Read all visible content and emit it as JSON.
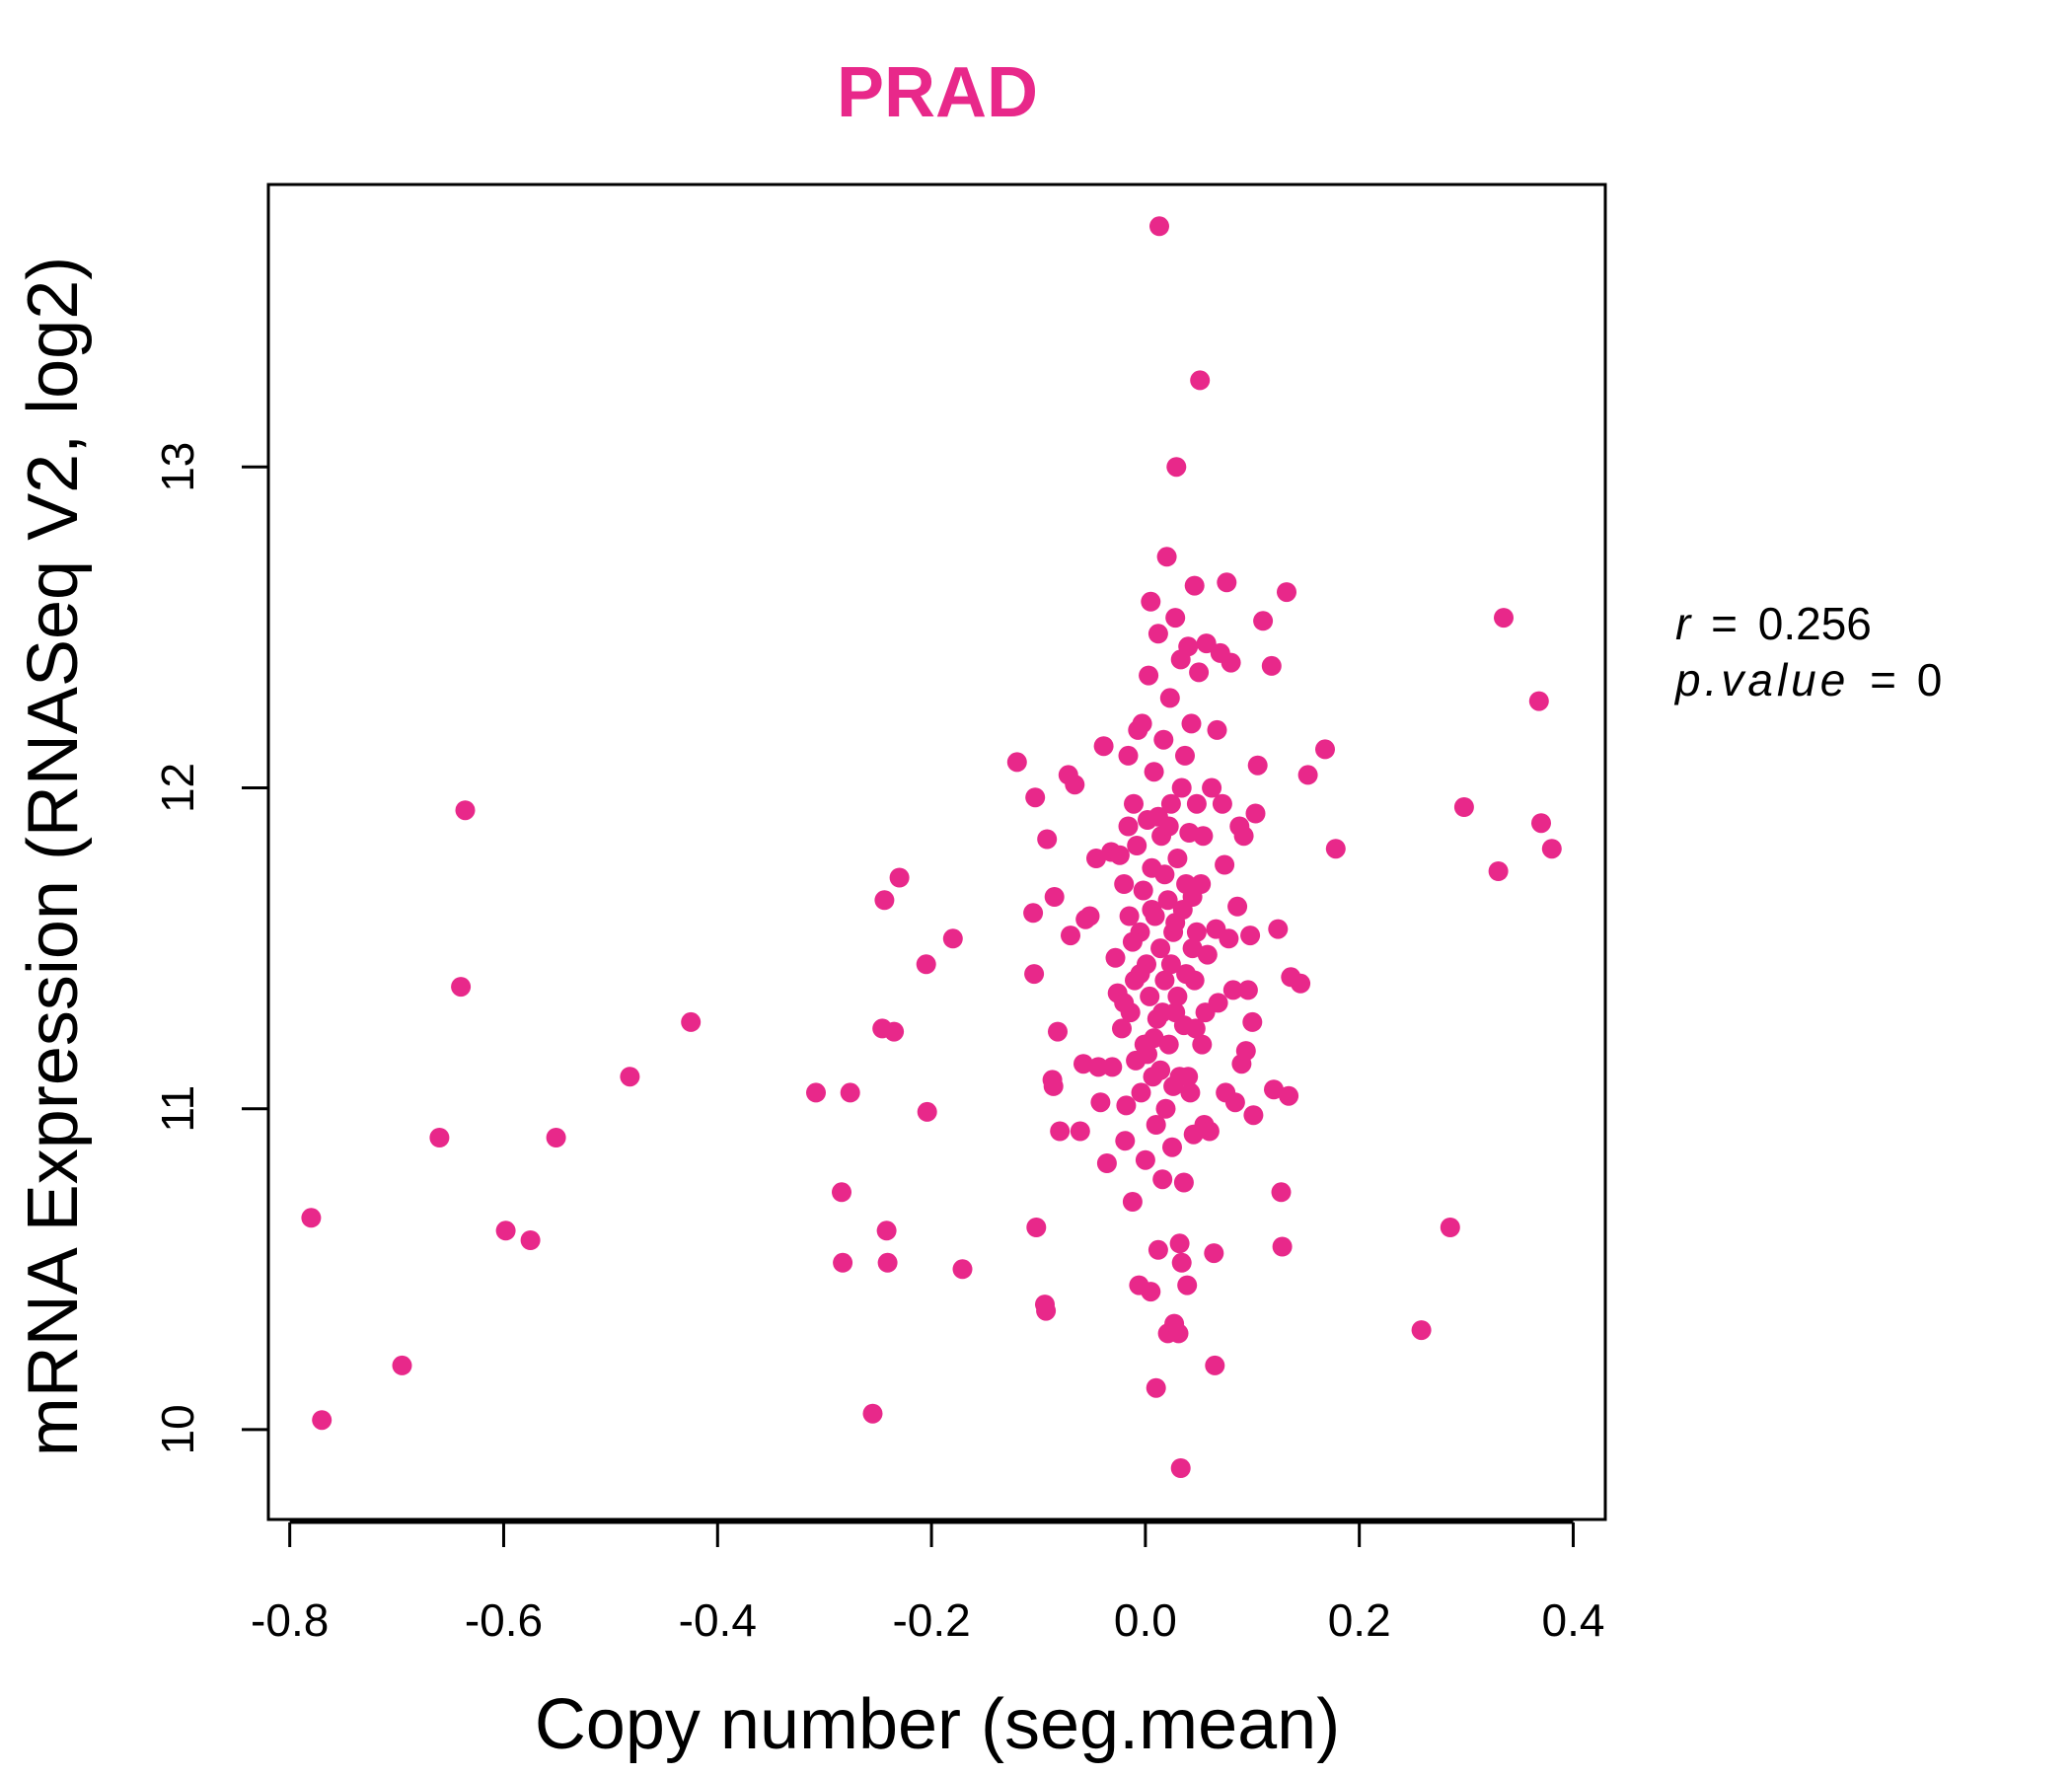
{
  "chart_data": {
    "type": "scatter",
    "title": "PRAD",
    "xlabel": "Copy number (seg.mean)",
    "ylabel": "mRNA Expression (RNASeq V2, log2)",
    "xlim": [
      -0.82,
      0.43
    ],
    "ylim": [
      9.72,
      13.88
    ],
    "x_ticks": [
      -0.8,
      -0.6,
      -0.4,
      -0.2,
      0.0,
      0.2,
      0.4
    ],
    "x_tick_labels": [
      "-0.8",
      "-0.6",
      "-0.4",
      "-0.2",
      "0.0",
      "0.2",
      "0.4"
    ],
    "y_ticks": [
      10,
      11,
      12,
      13
    ],
    "y_tick_labels": [
      "10",
      "11",
      "12",
      "13"
    ],
    "grid": false,
    "point_color": "#e8288a",
    "stats": {
      "r_label": "r",
      "r_value": "0.256",
      "p_label": "p.value",
      "p_value": "0"
    },
    "points": [
      [
        -0.78,
        10.66
      ],
      [
        -0.77,
        10.03
      ],
      [
        -0.695,
        10.2
      ],
      [
        -0.66,
        10.91
      ],
      [
        -0.64,
        11.38
      ],
      [
        -0.636,
        11.93
      ],
      [
        -0.598,
        10.62
      ],
      [
        -0.575,
        10.59
      ],
      [
        -0.551,
        10.91
      ],
      [
        -0.482,
        11.1
      ],
      [
        -0.425,
        11.27
      ],
      [
        -0.308,
        11.05
      ],
      [
        -0.284,
        10.74
      ],
      [
        -0.283,
        10.52
      ],
      [
        -0.276,
        11.05
      ],
      [
        -0.255,
        10.05
      ],
      [
        -0.246,
        11.25
      ],
      [
        -0.244,
        11.65
      ],
      [
        -0.242,
        10.62
      ],
      [
        -0.241,
        10.52
      ],
      [
        -0.235,
        11.24
      ],
      [
        -0.23,
        11.72
      ],
      [
        -0.205,
        11.45
      ],
      [
        -0.204,
        10.99
      ],
      [
        -0.18,
        11.53
      ],
      [
        -0.171,
        10.5
      ],
      [
        -0.12,
        12.08
      ],
      [
        -0.105,
        11.61
      ],
      [
        -0.104,
        11.42
      ],
      [
        -0.103,
        11.97
      ],
      [
        -0.102,
        10.63
      ],
      [
        -0.094,
        10.39
      ],
      [
        -0.093,
        10.37
      ],
      [
        -0.092,
        11.84
      ],
      [
        -0.087,
        11.09
      ],
      [
        -0.086,
        11.07
      ],
      [
        -0.085,
        11.66
      ],
      [
        -0.082,
        11.24
      ],
      [
        -0.08,
        10.93
      ],
      [
        -0.072,
        12.04
      ],
      [
        -0.07,
        11.54
      ],
      [
        -0.066,
        12.01
      ],
      [
        -0.061,
        10.93
      ],
      [
        -0.058,
        11.14
      ],
      [
        -0.056,
        11.59
      ],
      [
        -0.052,
        11.6
      ],
      [
        -0.046,
        11.78
      ],
      [
        -0.044,
        11.13
      ],
      [
        -0.042,
        11.02
      ],
      [
        -0.039,
        12.13
      ],
      [
        -0.036,
        10.83
      ],
      [
        -0.032,
        11.8
      ],
      [
        -0.031,
        11.13
      ],
      [
        -0.028,
        11.47
      ],
      [
        -0.026,
        11.36
      ],
      [
        -0.024,
        11.79
      ],
      [
        -0.022,
        11.25
      ],
      [
        -0.02,
        11.7
      ],
      [
        -0.019,
        10.9
      ],
      [
        -0.018,
        11.01
      ],
      [
        -0.016,
        12.1
      ],
      [
        -0.015,
        11.6
      ],
      [
        -0.014,
        11.3
      ],
      [
        -0.012,
        10.71
      ],
      [
        -0.011,
        11.95
      ],
      [
        -0.01,
        11.4
      ],
      [
        -0.009,
        11.15
      ],
      [
        -0.008,
        11.82
      ],
      [
        -0.007,
        12.18
      ],
      [
        -0.006,
        10.45
      ],
      [
        -0.005,
        11.55
      ],
      [
        -0.004,
        11.05
      ],
      [
        -0.003,
        12.2
      ],
      [
        -0.002,
        11.68
      ],
      [
        -0.001,
        11.2
      ],
      [
        0.0,
        10.84
      ],
      [
        0.001,
        11.45
      ],
      [
        0.002,
        11.9
      ],
      [
        0.003,
        12.35
      ],
      [
        0.004,
        11.35
      ],
      [
        0.005,
        12.58
      ],
      [
        0.005,
        10.43
      ],
      [
        0.006,
        11.75
      ],
      [
        0.007,
        11.1
      ],
      [
        0.008,
        12.05
      ],
      [
        0.009,
        11.6
      ],
      [
        0.01,
        10.13
      ],
      [
        0.01,
        10.95
      ],
      [
        0.011,
        11.28
      ],
      [
        0.012,
        12.48
      ],
      [
        0.012,
        10.56
      ],
      [
        0.013,
        13.75
      ],
      [
        0.014,
        11.5
      ],
      [
        0.015,
        11.85
      ],
      [
        0.016,
        10.78
      ],
      [
        0.017,
        12.15
      ],
      [
        0.018,
        11.4
      ],
      [
        0.019,
        11.0
      ],
      [
        0.02,
        12.72
      ],
      [
        0.021,
        11.65
      ],
      [
        0.021,
        10.3
      ],
      [
        0.022,
        11.2
      ],
      [
        0.023,
        12.28
      ],
      [
        0.024,
        11.95
      ],
      [
        0.025,
        10.88
      ],
      [
        0.026,
        11.55
      ],
      [
        0.027,
        10.33
      ],
      [
        0.028,
        12.53
      ],
      [
        0.028,
        11.3
      ],
      [
        0.029,
        13.0
      ],
      [
        0.03,
        11.78
      ],
      [
        0.031,
        10.3
      ],
      [
        0.032,
        10.58
      ],
      [
        0.032,
        11.1
      ],
      [
        0.033,
        12.4
      ],
      [
        0.033,
        9.88
      ],
      [
        0.034,
        10.52
      ],
      [
        0.035,
        11.62
      ],
      [
        0.036,
        10.77
      ],
      [
        0.037,
        12.1
      ],
      [
        0.038,
        11.42
      ],
      [
        0.039,
        10.45
      ],
      [
        0.04,
        12.44
      ],
      [
        0.041,
        11.86
      ],
      [
        0.042,
        11.05
      ],
      [
        0.043,
        12.2
      ],
      [
        0.044,
        11.5
      ],
      [
        0.045,
        10.92
      ],
      [
        0.046,
        12.63
      ],
      [
        0.047,
        11.25
      ],
      [
        0.048,
        11.95
      ],
      [
        0.05,
        12.36
      ],
      [
        0.051,
        13.27
      ],
      [
        0.052,
        11.7
      ],
      [
        0.053,
        11.2
      ],
      [
        0.055,
        10.95
      ],
      [
        0.057,
        12.45
      ],
      [
        0.058,
        11.48
      ],
      [
        0.06,
        10.93
      ],
      [
        0.062,
        12.0
      ],
      [
        0.064,
        10.55
      ],
      [
        0.065,
        10.2
      ],
      [
        0.066,
        11.56
      ],
      [
        0.067,
        12.18
      ],
      [
        0.068,
        11.33
      ],
      [
        0.07,
        12.42
      ],
      [
        0.072,
        11.95
      ],
      [
        0.074,
        11.76
      ],
      [
        0.075,
        11.05
      ],
      [
        0.076,
        12.64
      ],
      [
        0.078,
        11.53
      ],
      [
        0.08,
        12.39
      ],
      [
        0.082,
        11.37
      ],
      [
        0.084,
        11.02
      ],
      [
        0.086,
        11.63
      ],
      [
        0.088,
        11.88
      ],
      [
        0.09,
        11.14
      ],
      [
        0.092,
        11.85
      ],
      [
        0.094,
        11.18
      ],
      [
        0.096,
        11.37
      ],
      [
        0.098,
        11.54
      ],
      [
        0.1,
        11.27
      ],
      [
        0.101,
        10.98
      ],
      [
        0.103,
        11.92
      ],
      [
        0.105,
        12.07
      ],
      [
        0.11,
        12.52
      ],
      [
        0.118,
        12.38
      ],
      [
        0.12,
        11.06
      ],
      [
        0.124,
        11.56
      ],
      [
        0.127,
        10.74
      ],
      [
        0.128,
        10.57
      ],
      [
        0.132,
        12.61
      ],
      [
        0.134,
        11.04
      ],
      [
        0.136,
        11.41
      ],
      [
        0.145,
        11.39
      ],
      [
        0.152,
        12.04
      ],
      [
        0.168,
        12.12
      ],
      [
        0.178,
        11.81
      ],
      [
        0.258,
        10.31
      ],
      [
        0.285,
        10.63
      ],
      [
        0.298,
        11.94
      ],
      [
        0.33,
        11.74
      ],
      [
        0.335,
        12.53
      ],
      [
        0.368,
        12.27
      ],
      [
        0.37,
        11.89
      ],
      [
        0.38,
        11.81
      ],
      [
        -0.005,
        11.42
      ],
      [
        0.006,
        11.62
      ],
      [
        0.014,
        11.12
      ],
      [
        0.022,
        11.88
      ],
      [
        0.03,
        11.35
      ],
      [
        0.038,
        11.7
      ],
      [
        0.046,
        11.4
      ],
      [
        0.054,
        11.85
      ],
      [
        0.016,
        11.3
      ],
      [
        0.026,
        11.07
      ],
      [
        -0.012,
        11.52
      ],
      [
        0.008,
        11.22
      ],
      [
        0.018,
        11.73
      ],
      [
        0.028,
        11.58
      ],
      [
        0.036,
        11.26
      ],
      [
        0.044,
        11.66
      ],
      [
        0.002,
        11.17
      ],
      [
        0.012,
        11.91
      ],
      [
        -0.02,
        11.33
      ],
      [
        0.034,
        12.0
      ],
      [
        0.024,
        11.45
      ],
      [
        0.04,
        11.1
      ],
      [
        0.048,
        11.55
      ],
      [
        0.056,
        11.3
      ],
      [
        -0.016,
        11.88
      ]
    ]
  }
}
